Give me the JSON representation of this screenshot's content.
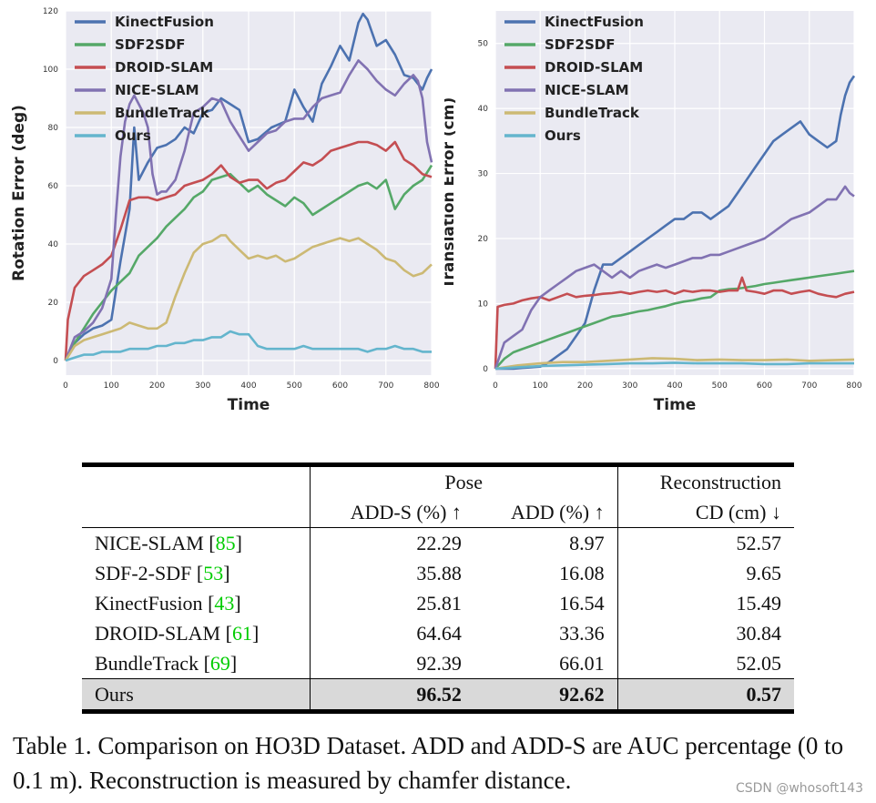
{
  "chart_data": [
    {
      "type": "line",
      "xlabel": "Time",
      "ylabel": "Rotation Error (deg)",
      "xlim": [
        0,
        800
      ],
      "ylim": [
        -5,
        120
      ],
      "xticks": [
        0,
        100,
        200,
        300,
        400,
        500,
        600,
        700,
        800
      ],
      "yticks": [
        0,
        20,
        40,
        60,
        80,
        100,
        120
      ],
      "grid": true,
      "legend_position": "top-left",
      "series": [
        {
          "name": "KinectFusion",
          "color": "#4c72b0",
          "x": [
            0,
            20,
            40,
            60,
            80,
            100,
            120,
            140,
            150,
            160,
            180,
            200,
            220,
            240,
            260,
            280,
            300,
            320,
            340,
            360,
            380,
            400,
            420,
            450,
            480,
            500,
            520,
            540,
            560,
            580,
            600,
            620,
            640,
            650,
            660,
            680,
            700,
            720,
            740,
            760,
            780,
            790,
            800
          ],
          "y": [
            0,
            6,
            9,
            11,
            12,
            14,
            34,
            52,
            80,
            62,
            68,
            73,
            74,
            76,
            80,
            78,
            85,
            86,
            90,
            88,
            86,
            75,
            76,
            80,
            82,
            93,
            87,
            82,
            95,
            101,
            108,
            103,
            116,
            119,
            117,
            108,
            110,
            105,
            98,
            97,
            93,
            97,
            100
          ]
        },
        {
          "name": "SDF2SDF",
          "color": "#55a868",
          "x": [
            0,
            20,
            40,
            60,
            80,
            100,
            120,
            140,
            160,
            180,
            200,
            220,
            240,
            260,
            280,
            300,
            320,
            340,
            360,
            380,
            400,
            420,
            440,
            460,
            480,
            500,
            520,
            540,
            560,
            580,
            600,
            620,
            640,
            660,
            680,
            700,
            720,
            740,
            760,
            780,
            800
          ],
          "y": [
            0,
            6,
            11,
            16,
            20,
            24,
            27,
            30,
            36,
            39,
            42,
            46,
            49,
            52,
            56,
            58,
            62,
            63,
            64,
            61,
            58,
            60,
            57,
            55,
            53,
            56,
            54,
            50,
            52,
            54,
            56,
            58,
            60,
            61,
            59,
            62,
            52,
            57,
            60,
            62,
            67
          ]
        },
        {
          "name": "DROID-SLAM",
          "color": "#c44e52",
          "x": [
            0,
            5,
            20,
            40,
            60,
            80,
            100,
            120,
            130,
            140,
            160,
            180,
            200,
            220,
            240,
            260,
            280,
            300,
            320,
            340,
            360,
            380,
            400,
            420,
            440,
            460,
            480,
            500,
            520,
            540,
            560,
            580,
            600,
            620,
            640,
            660,
            680,
            700,
            720,
            740,
            760,
            780,
            800
          ],
          "y": [
            0,
            14,
            25,
            29,
            31,
            33,
            36,
            45,
            50,
            55,
            56,
            56,
            55,
            56,
            57,
            60,
            61,
            62,
            64,
            67,
            63,
            61,
            62,
            62,
            59,
            61,
            62,
            65,
            68,
            67,
            69,
            72,
            73,
            74,
            75,
            75,
            74,
            72,
            75,
            69,
            67,
            64,
            63
          ]
        },
        {
          "name": "NICE-SLAM",
          "color": "#8172b2",
          "x": [
            0,
            20,
            40,
            60,
            80,
            100,
            110,
            120,
            130,
            140,
            150,
            160,
            170,
            180,
            190,
            200,
            210,
            220,
            240,
            260,
            280,
            300,
            320,
            340,
            360,
            380,
            400,
            420,
            440,
            460,
            480,
            500,
            520,
            540,
            560,
            580,
            600,
            620,
            640,
            660,
            680,
            700,
            720,
            740,
            760,
            770,
            780,
            790,
            800
          ],
          "y": [
            0,
            8,
            10,
            13,
            18,
            28,
            50,
            70,
            82,
            88,
            91,
            88,
            85,
            80,
            64,
            57,
            58,
            58,
            62,
            72,
            85,
            87,
            90,
            89,
            82,
            77,
            72,
            75,
            78,
            79,
            82,
            83,
            83,
            87,
            90,
            91,
            92,
            98,
            103,
            100,
            96,
            93,
            91,
            95,
            98,
            96,
            90,
            75,
            68
          ]
        },
        {
          "name": "BundleTrack",
          "color": "#ccb974",
          "x": [
            0,
            20,
            40,
            60,
            80,
            100,
            120,
            140,
            160,
            180,
            200,
            220,
            240,
            260,
            280,
            300,
            320,
            340,
            350,
            360,
            380,
            400,
            420,
            440,
            460,
            480,
            500,
            520,
            540,
            560,
            580,
            600,
            620,
            640,
            660,
            680,
            700,
            720,
            740,
            760,
            780,
            800
          ],
          "y": [
            0,
            5,
            7,
            8,
            9,
            10,
            11,
            13,
            12,
            11,
            11,
            13,
            22,
            30,
            37,
            40,
            41,
            43,
            43,
            41,
            38,
            35,
            36,
            35,
            36,
            34,
            35,
            37,
            39,
            40,
            41,
            42,
            41,
            42,
            40,
            38,
            35,
            34,
            31,
            29,
            30,
            33
          ]
        },
        {
          "name": "Ours",
          "color": "#64b5cd",
          "x": [
            0,
            20,
            40,
            60,
            80,
            100,
            120,
            140,
            160,
            180,
            200,
            220,
            240,
            260,
            280,
            300,
            320,
            340,
            360,
            380,
            400,
            420,
            440,
            460,
            480,
            500,
            520,
            540,
            560,
            580,
            600,
            620,
            640,
            660,
            680,
            700,
            720,
            740,
            760,
            780,
            800
          ],
          "y": [
            0,
            1,
            2,
            2,
            3,
            3,
            3,
            4,
            4,
            4,
            5,
            5,
            6,
            6,
            7,
            7,
            8,
            8,
            10,
            9,
            9,
            5,
            4,
            4,
            4,
            4,
            5,
            4,
            4,
            4,
            4,
            4,
            4,
            3,
            4,
            4,
            5,
            4,
            4,
            3,
            3
          ]
        }
      ]
    },
    {
      "type": "line",
      "xlabel": "Time",
      "ylabel": "Translation Error (cm)",
      "xlim": [
        0,
        800
      ],
      "ylim": [
        -1,
        55
      ],
      "xticks": [
        0,
        100,
        200,
        300,
        400,
        500,
        600,
        700,
        800
      ],
      "yticks": [
        0,
        10,
        20,
        30,
        40,
        50
      ],
      "grid": true,
      "legend_position": "top-left",
      "series": [
        {
          "name": "KinectFusion",
          "color": "#4c72b0",
          "x": [
            0,
            20,
            40,
            60,
            80,
            100,
            120,
            140,
            160,
            180,
            200,
            220,
            240,
            260,
            280,
            300,
            320,
            340,
            360,
            380,
            400,
            420,
            440,
            460,
            480,
            500,
            520,
            540,
            560,
            580,
            600,
            620,
            640,
            660,
            680,
            700,
            720,
            740,
            760,
            770,
            780,
            790,
            800
          ],
          "y": [
            0,
            0,
            0,
            0.1,
            0.2,
            0.3,
            1,
            2,
            3,
            5,
            7,
            12,
            16,
            16,
            17,
            18,
            19,
            20,
            21,
            22,
            23,
            23,
            24,
            24,
            23,
            24,
            25,
            27,
            29,
            31,
            33,
            35,
            36,
            37,
            38,
            36,
            35,
            34,
            35,
            39,
            42,
            44,
            45
          ]
        },
        {
          "name": "SDF2SDF",
          "color": "#55a868",
          "x": [
            0,
            20,
            40,
            60,
            80,
            100,
            120,
            140,
            160,
            180,
            200,
            220,
            240,
            260,
            280,
            300,
            320,
            340,
            360,
            380,
            400,
            420,
            440,
            460,
            480,
            500,
            520,
            540,
            560,
            580,
            600,
            620,
            640,
            660,
            680,
            700,
            720,
            740,
            760,
            780,
            800
          ],
          "y": [
            0,
            1.5,
            2.5,
            3,
            3.5,
            4,
            4.5,
            5,
            5.5,
            6,
            6.5,
            7,
            7.5,
            8,
            8.2,
            8.5,
            8.8,
            9,
            9.3,
            9.6,
            10,
            10.3,
            10.5,
            10.8,
            11,
            12,
            12.2,
            12.3,
            12.5,
            12.7,
            13,
            13.2,
            13.4,
            13.6,
            13.8,
            14,
            14.2,
            14.4,
            14.6,
            14.8,
            15
          ]
        },
        {
          "name": "DROID-SLAM",
          "color": "#c44e52",
          "x": [
            0,
            5,
            20,
            40,
            60,
            80,
            100,
            120,
            140,
            160,
            180,
            200,
            220,
            240,
            260,
            280,
            300,
            320,
            340,
            360,
            380,
            400,
            420,
            440,
            460,
            480,
            500,
            520,
            540,
            550,
            560,
            580,
            600,
            620,
            640,
            660,
            680,
            700,
            720,
            740,
            760,
            780,
            800
          ],
          "y": [
            0,
            9.5,
            9.8,
            10,
            10.5,
            10.8,
            11,
            10.5,
            11,
            11.5,
            11,
            11.2,
            11.3,
            11.5,
            11.6,
            11.8,
            11.5,
            11.8,
            12,
            11.8,
            12,
            11.5,
            12,
            11.8,
            12,
            12,
            11.8,
            12,
            12,
            14,
            12,
            11.8,
            11.5,
            12,
            12,
            11.5,
            11.8,
            12,
            11.5,
            11.2,
            11,
            11.5,
            11.8
          ]
        },
        {
          "name": "NICE-SLAM",
          "color": "#8172b2",
          "x": [
            0,
            20,
            40,
            60,
            80,
            100,
            120,
            140,
            160,
            180,
            200,
            220,
            240,
            260,
            280,
            300,
            320,
            340,
            360,
            380,
            400,
            420,
            440,
            460,
            480,
            500,
            520,
            540,
            560,
            580,
            600,
            620,
            640,
            660,
            680,
            700,
            720,
            740,
            760,
            780,
            790,
            800
          ],
          "y": [
            0,
            4,
            5,
            6,
            9,
            11,
            12,
            13,
            14,
            15,
            15.5,
            16,
            15,
            14,
            15,
            14,
            15,
            15.5,
            16,
            15.5,
            16,
            16.5,
            17,
            17,
            17.5,
            17.5,
            18,
            18.5,
            19,
            19.5,
            20,
            21,
            22,
            23,
            23.5,
            24,
            25,
            26,
            26,
            28,
            27,
            26.5
          ]
        },
        {
          "name": "BundleTrack",
          "color": "#ccb974",
          "x": [
            0,
            50,
            100,
            150,
            200,
            250,
            300,
            350,
            400,
            450,
            500,
            550,
            600,
            650,
            700,
            750,
            800
          ],
          "y": [
            0,
            0.5,
            0.8,
            1,
            1,
            1.2,
            1.4,
            1.6,
            1.5,
            1.3,
            1.4,
            1.3,
            1.3,
            1.4,
            1.2,
            1.3,
            1.4
          ]
        },
        {
          "name": "Ours",
          "color": "#64b5cd",
          "x": [
            0,
            50,
            100,
            150,
            200,
            250,
            300,
            350,
            400,
            450,
            500,
            550,
            600,
            650,
            700,
            750,
            800
          ],
          "y": [
            0,
            0.2,
            0.4,
            0.5,
            0.6,
            0.7,
            0.8,
            0.8,
            0.9,
            0.8,
            0.8,
            0.8,
            0.7,
            0.7,
            0.8,
            0.8,
            0.8
          ]
        }
      ]
    }
  ],
  "table": {
    "group_pose": "Pose",
    "group_recon": "Reconstruction",
    "col_adds": "ADD-S (%) ↑",
    "col_add": "ADD (%) ↑",
    "col_cd": "CD (cm) ↓",
    "rows": [
      {
        "method": "NICE-SLAM",
        "ref": "85",
        "adds": "22.29",
        "add": "8.97",
        "cd": "52.57"
      },
      {
        "method": "SDF-2-SDF",
        "ref": "53",
        "adds": "35.88",
        "add": "16.08",
        "cd": "9.65"
      },
      {
        "method": "KinectFusion",
        "ref": "43",
        "adds": "25.81",
        "add": "16.54",
        "cd": "15.49"
      },
      {
        "method": "DROID-SLAM",
        "ref": "61",
        "adds": "64.64",
        "add": "33.36",
        "cd": "30.84"
      },
      {
        "method": "BundleTrack",
        "ref": "69",
        "adds": "92.39",
        "add": "66.01",
        "cd": "52.05"
      }
    ],
    "ours": {
      "method": "Ours",
      "adds": "96.52",
      "add": "92.62",
      "cd": "0.57"
    }
  },
  "caption": "Table 1. Comparison on HO3D Dataset. ADD and ADD-S are AUC percentage (0 to 0.1 m). Reconstruction is measured by chamfer distance.",
  "watermark": "CSDN @whosoft143"
}
